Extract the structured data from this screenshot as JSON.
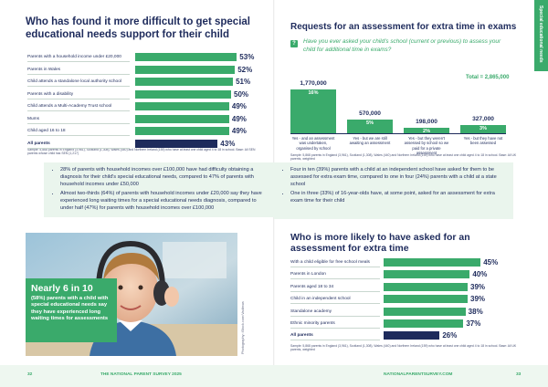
{
  "side_tab": "Special educational needs",
  "chart_data": [
    {
      "type": "bar",
      "orientation": "horizontal",
      "title": "Who has found it more difficult to get special educational needs support for their child",
      "categories": [
        "Parents with a household income under £20,000",
        "Parents in Wales",
        "Child attends a standalone local authority school",
        "Parents with a disability",
        "Child attends a Multi-Academy Trust school",
        "Mums",
        "Child aged 16 to 18",
        "All parents"
      ],
      "values": [
        53,
        52,
        51,
        50,
        49,
        49,
        49,
        43
      ],
      "value_labels": [
        "53%",
        "52%",
        "51%",
        "50%",
        "49%",
        "49%",
        "49%",
        "43%"
      ],
      "colors": [
        "#3aaa6b",
        "#3aaa6b",
        "#3aaa6b",
        "#3aaa6b",
        "#3aaa6b",
        "#3aaa6b",
        "#3aaa6b",
        "#1e2b5c"
      ],
      "xlim": [
        0,
        100
      ],
      "source": "Sample: 5,868 parents in England (3,961), Scotland (1,308), Wales (440) and Northern Ireland (159) who have at least one child aged 4 to 18 in school. Base: All SEN parents whose child has SEN (1,217)"
    },
    {
      "type": "bar",
      "orientation": "vertical",
      "title": "Requests for an assessment for extra time in exams",
      "subtitle": "Have you ever asked your child's school (current or previous) to assess your child for additional time in exams?",
      "categories": [
        "Yes - and an assessment was undertaken, organised by school",
        "Yes - but we are still awaiting an assessment",
        "Yes - but they weren't assessed by school so we paid for a private assessment",
        "Yes - but they have not been assessed"
      ],
      "values": [
        16,
        5,
        2,
        3
      ],
      "value_labels": [
        "16%",
        "5%",
        "2%",
        "3%"
      ],
      "counts": [
        1770000,
        570000,
        198000,
        327000
      ],
      "count_labels": [
        "1,770,000",
        "570,000",
        "198,000",
        "327,000"
      ],
      "total_label": "Total = 2,865,000",
      "color": "#3aaa6b",
      "ylim": [
        0,
        16
      ],
      "source": "Sample: 5,868 parents in England (3,961), Scotland (1,308), Wales (440) and Northern Ireland (159) who have at least one child aged 4 to 18 in school. Base: All UK parents, weighted"
    },
    {
      "type": "bar",
      "orientation": "horizontal",
      "title": "Who is more likely to have asked for an assessment for extra time",
      "categories": [
        "With a child eligible for free school meals",
        "Parents in London",
        "Parents aged 18 to 34",
        "Child in an independent school",
        "Standalone academy",
        "Ethnic minority parents",
        "All parents"
      ],
      "values": [
        45,
        40,
        39,
        39,
        38,
        37,
        26
      ],
      "value_labels": [
        "45%",
        "40%",
        "39%",
        "39%",
        "38%",
        "37%",
        "26%"
      ],
      "colors": [
        "#3aaa6b",
        "#3aaa6b",
        "#3aaa6b",
        "#3aaa6b",
        "#3aaa6b",
        "#3aaa6b",
        "#1e2b5c"
      ],
      "xlim": [
        0,
        100
      ],
      "source": "Sample: 5,868 parents in England (3,961), Scotland (1,308), Wales (440) and Northern Ireland (159) who have at least one child aged 4 to 18 in school. Base: All UK parents, weighted"
    }
  ],
  "left_bullets": [
    "28% of parents with household incomes over £100,000 have had difficulty obtaining a diagnosis for their child's special educational needs, compared to 47% of parents with household incomes under £50,000",
    "Almost two-thirds (64%) of parents with household incomes under £20,000 say they have experienced long waiting times for a special educational needs diagnosis, compared to under half (47%) for parents with household incomes over £100,000"
  ],
  "right_bullets": [
    "Four in ten (39%) parents with a child at an independent school have asked for them to be assessed for extra exam time, compared to one in four (24%) parents with a child at a state school",
    "One in three (33%) of 16-year-olds have, at some point, asked for an assessment for extra exam time for their child"
  ],
  "callout": {
    "headline": "Nearly 6 in 10",
    "text": "(58%) parents with a child with special educational needs say they have experienced long waiting times for assessments"
  },
  "photo_credit": "Photography: iStock.com/Vadimus",
  "footer": {
    "left_page_number": "32",
    "left_text": "THE NATIONAL PARENT SURVEY 2025",
    "right_text": "NATIONALPARENTSURVEY.COM",
    "right_page_number": "33"
  }
}
